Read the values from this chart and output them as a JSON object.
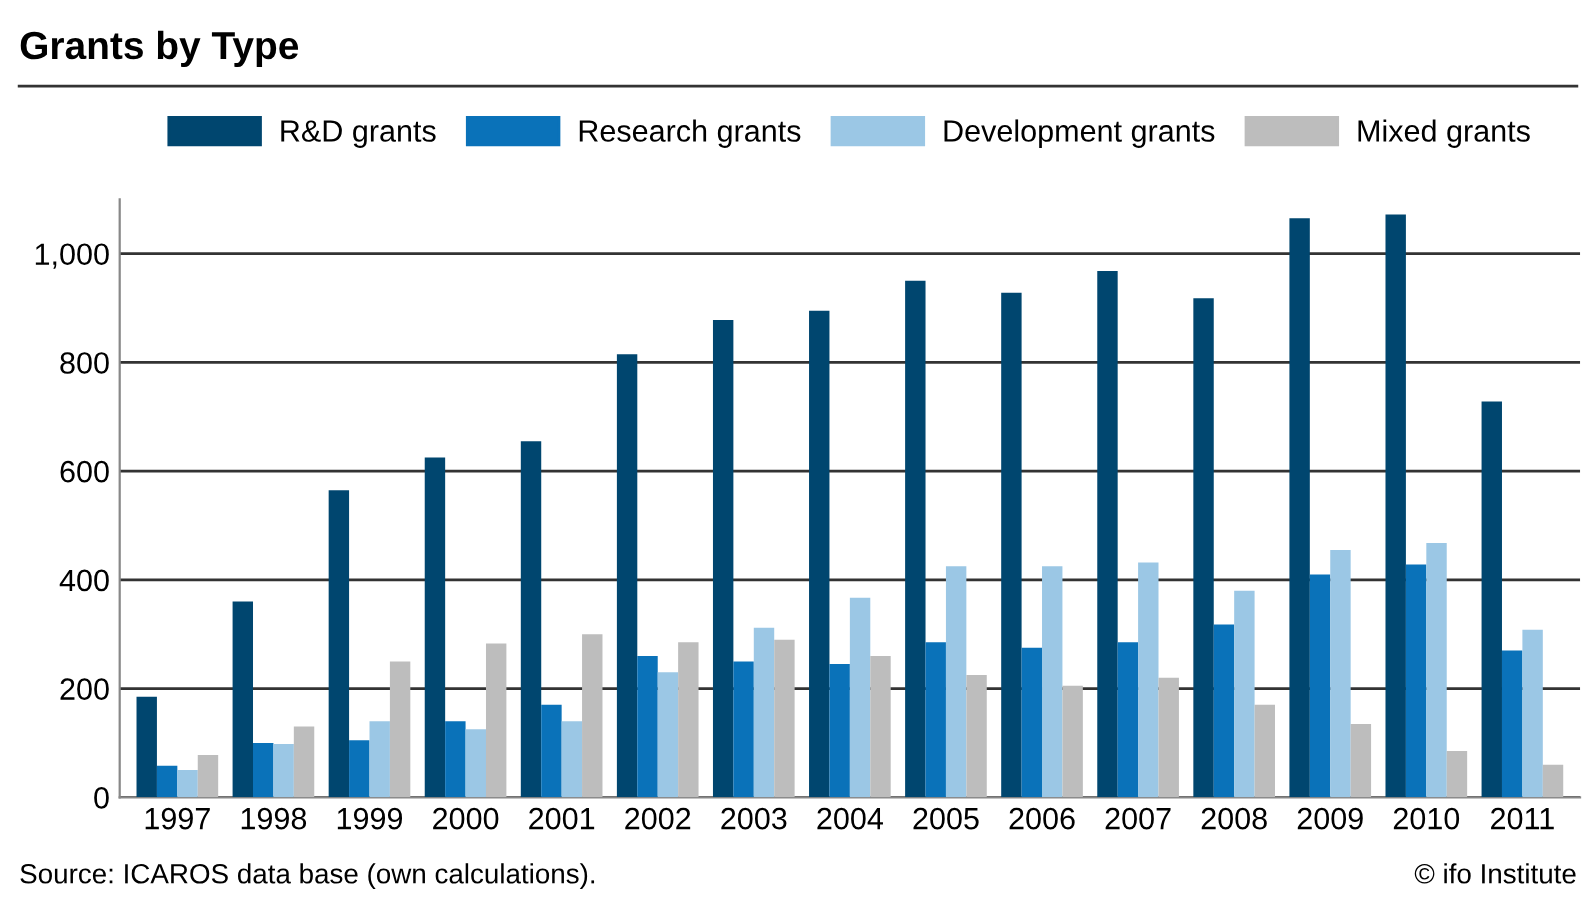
{
  "chart_data": {
    "type": "bar",
    "title": "Grants by Type",
    "categories": [
      "1997",
      "1998",
      "1999",
      "2000",
      "2001",
      "2002",
      "2003",
      "2004",
      "2005",
      "2006",
      "2007",
      "2008",
      "2009",
      "2010",
      "2011"
    ],
    "series": [
      {
        "name": "R&D grants",
        "color": "#00466f",
        "values": [
          185,
          360,
          565,
          625,
          655,
          815,
          878,
          895,
          950,
          928,
          968,
          918,
          1065,
          1072,
          728
        ]
      },
      {
        "name": "Research grants",
        "color": "#0a72b9",
        "values": [
          58,
          100,
          105,
          140,
          170,
          260,
          250,
          245,
          285,
          275,
          285,
          318,
          410,
          428,
          270
        ]
      },
      {
        "name": "Development grants",
        "color": "#9bc7e5",
        "values": [
          50,
          98,
          140,
          125,
          140,
          230,
          312,
          367,
          425,
          425,
          432,
          380,
          455,
          468,
          308
        ]
      },
      {
        "name": "Mixed grants",
        "color": "#bdbdbd",
        "values": [
          78,
          130,
          250,
          283,
          300,
          285,
          290,
          260,
          225,
          205,
          220,
          170,
          135,
          85,
          60
        ]
      }
    ],
    "ylim": [
      0,
      1100
    ],
    "yticks": [
      0,
      200,
      400,
      600,
      800,
      {
        "value": 1000,
        "label": "1,000"
      }
    ],
    "grid": "y",
    "legend": "top",
    "annotations": [
      "Source: ICAROS data base (own calculations).",
      "© ifo Institute"
    ]
  }
}
